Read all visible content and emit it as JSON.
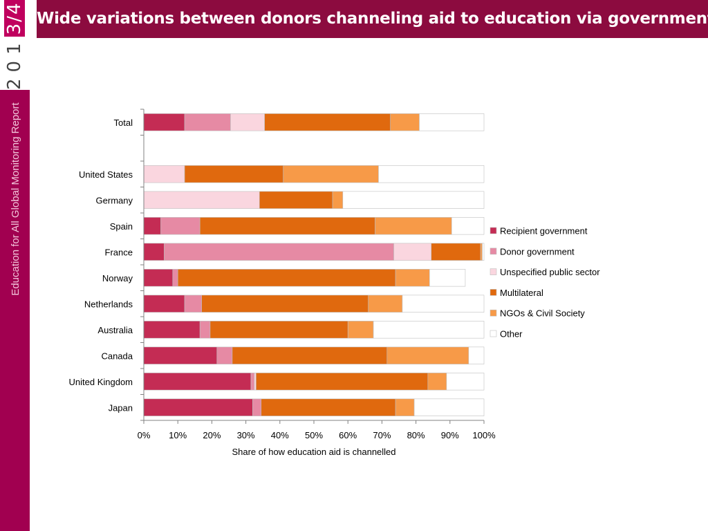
{
  "sidebar": {
    "year_prefix": "201",
    "year_suffix": "3/4",
    "report_name": "Education for All Global Monitoring Report"
  },
  "header": {
    "title": "Wide variations between donors channeling aid to education via governments"
  },
  "colors": {
    "sidebar_bg": "#a10050",
    "title_bar": "#8c0b3f",
    "Recipient government": "#c42c54",
    "Donor government": "#e68aa4",
    "Unspecified public sector": "#fad6df",
    "Multilateral": "#e0690e",
    "NGOs & Civil Society": "#f79a48",
    "Other": "#ffffff"
  },
  "chart_data": {
    "type": "bar",
    "orientation": "horizontal",
    "stacked": true,
    "title": "",
    "xlabel": "Share of how education aid is channelled",
    "ylabel": "",
    "xlim": [
      0,
      100
    ],
    "x_ticks": [
      "0%",
      "10%",
      "20%",
      "30%",
      "40%",
      "50%",
      "60%",
      "70%",
      "80%",
      "90%",
      "100%"
    ],
    "legend_position": "right",
    "categories": [
      "Total",
      "",
      "United States",
      "Germany",
      "Spain",
      "France",
      "Norway",
      "Netherlands",
      "Australia",
      "Canada",
      "United Kingdom",
      "Japan"
    ],
    "series": [
      {
        "name": "Recipient government",
        "values": [
          12,
          null,
          0,
          0,
          5,
          6,
          8.5,
          12,
          16.5,
          21.5,
          31.5,
          32
        ]
      },
      {
        "name": "Donor government",
        "values": [
          13.5,
          null,
          0,
          0,
          11.5,
          67.5,
          1.5,
          5,
          3,
          4.5,
          1,
          2.5
        ]
      },
      {
        "name": "Unspecified public sector",
        "values": [
          10,
          null,
          12,
          34,
          0,
          11,
          0,
          0,
          0,
          0,
          0.5,
          0
        ]
      },
      {
        "name": "Multilateral",
        "values": [
          37,
          null,
          29,
          21.5,
          51.5,
          14.5,
          64,
          49,
          40.5,
          45.5,
          50.5,
          39.5
        ]
      },
      {
        "name": "NGOs & Civil Society",
        "values": [
          8.5,
          null,
          28,
          3,
          22.5,
          0.5,
          10,
          10,
          7.5,
          24,
          5.5,
          5.5
        ]
      },
      {
        "name": "Other",
        "values": [
          19,
          null,
          31,
          41.5,
          9.5,
          0.5,
          10.5,
          24,
          32.5,
          4.5,
          11,
          20.5
        ]
      }
    ]
  }
}
